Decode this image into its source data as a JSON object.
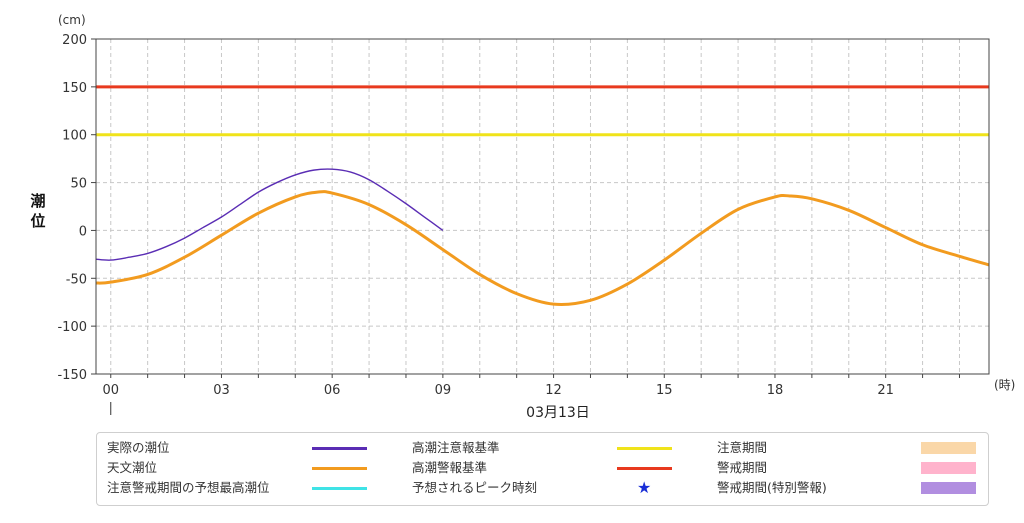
{
  "chart_data": {
    "type": "line",
    "y_unit": "(cm)",
    "ylabel": "潮位",
    "x_unit": "(時)",
    "date_label": "03月13日",
    "ylim": [
      -150,
      200
    ],
    "y_ticks": [
      -150,
      -100,
      -50,
      0,
      50,
      100,
      150,
      200
    ],
    "xlim": [
      -0.4,
      23.8
    ],
    "x_ticks": [
      0,
      3,
      6,
      9,
      12,
      15,
      18,
      21
    ],
    "x_tick_labels": [
      "00",
      "03",
      "06",
      "09",
      "12",
      "15",
      "18",
      "21"
    ],
    "grid": true,
    "series": [
      {
        "name": "高潮警報基準",
        "color": "#e8391e",
        "x": [
          -0.4,
          23.8
        ],
        "values": [
          150,
          150
        ]
      },
      {
        "name": "高潮注意報基準",
        "color": "#f0e31a",
        "x": [
          -0.4,
          23.8
        ],
        "values": [
          100,
          100
        ]
      },
      {
        "name": "天文潮位",
        "color": "#f29b1f",
        "x": [
          -0.4,
          0,
          1,
          2,
          3,
          4,
          5,
          5.6,
          6,
          7,
          8,
          9,
          10,
          11,
          12,
          13,
          14,
          15,
          16,
          17,
          18,
          18.4,
          19,
          20,
          21,
          22,
          23,
          23.8
        ],
        "values": [
          -55,
          -54,
          -46,
          -28,
          -5,
          18,
          35,
          40,
          39,
          27,
          6,
          -20,
          -46,
          -66,
          -77,
          -73,
          -56,
          -31,
          -3,
          22,
          35,
          36,
          33,
          21,
          3,
          -15,
          -27,
          -36
        ]
      },
      {
        "name": "実際の潮位",
        "color": "#5a2db4",
        "x": [
          -0.4,
          0,
          0.5,
          1,
          1.5,
          2,
          2.5,
          3,
          3.5,
          4,
          4.5,
          5,
          5.5,
          6,
          6.5,
          7,
          7.5,
          8,
          8.5,
          9
        ],
        "values": [
          -30,
          -31,
          -28,
          -24,
          -17,
          -8,
          3,
          14,
          27,
          40,
          50,
          58,
          63,
          64,
          61,
          53,
          41,
          28,
          14,
          0
        ]
      }
    ]
  },
  "legend": {
    "items": [
      {
        "label": "実際の潮位",
        "kind": "line",
        "color": "#5a2db4"
      },
      {
        "label": "高潮注意報基準",
        "kind": "line",
        "color": "#f0e31a"
      },
      {
        "label": "注意期間",
        "kind": "box",
        "color": "#fad7a8"
      },
      {
        "label": "天文潮位",
        "kind": "line",
        "color": "#f29b1f"
      },
      {
        "label": "高潮警報基準",
        "kind": "line",
        "color": "#e8391e"
      },
      {
        "label": "警戒期間",
        "kind": "box",
        "color": "#ffb3cc"
      },
      {
        "label": "注意警戒期間の予想最高潮位",
        "kind": "line",
        "color": "#3fe3e6"
      },
      {
        "label": "予想されるピーク時刻",
        "kind": "star",
        "color": "#1a2fd6",
        "glyph": "★"
      },
      {
        "label": "警戒期間(特別警報)",
        "kind": "box",
        "color": "#b18ee0"
      }
    ]
  },
  "colors": {
    "grid": "#c8c8c8",
    "axis": "#444444"
  }
}
